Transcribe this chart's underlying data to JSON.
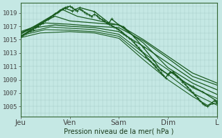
{
  "title": "Pression niveau de la mer( hPa )",
  "bg_color": "#c5e8e4",
  "grid_color": "#a8ccc8",
  "line_color": "#1a5c20",
  "yticks": [
    1005,
    1007,
    1009,
    1011,
    1013,
    1015,
    1017,
    1019
  ],
  "xtick_labels": [
    "Jeu",
    "Ven",
    "Sam",
    "Dim",
    "L"
  ],
  "xtick_pos": [
    0,
    1,
    2,
    3,
    4
  ],
  "ylim": [
    1003.5,
    1020.5
  ],
  "xlim": [
    0,
    4
  ],
  "series": [
    {
      "pts": [
        [
          0,
          1015.5
        ],
        [
          0.9,
          1019.7
        ],
        [
          1.05,
          1019.3
        ],
        [
          1.2,
          1019.8
        ],
        [
          1.5,
          1019.2
        ],
        [
          1.8,
          1017.5
        ],
        [
          1.85,
          1018.1
        ],
        [
          2.0,
          1017.2
        ],
        [
          2.1,
          1016.9
        ],
        [
          2.3,
          1015.5
        ],
        [
          2.5,
          1013.8
        ],
        [
          2.7,
          1012.0
        ],
        [
          2.85,
          1010.5
        ],
        [
          3.0,
          1009.8
        ],
        [
          3.1,
          1010.2
        ],
        [
          3.2,
          1009.5
        ],
        [
          3.3,
          1008.8
        ],
        [
          3.5,
          1008.0
        ],
        [
          3.7,
          1007.2
        ],
        [
          4.0,
          1005.8
        ]
      ],
      "lw": 1.0,
      "marker": true
    },
    {
      "pts": [
        [
          0,
          1015.8
        ],
        [
          0.85,
          1019.5
        ],
        [
          1.0,
          1019.0
        ],
        [
          1.15,
          1018.5
        ],
        [
          2.0,
          1017.2
        ],
        [
          2.5,
          1014.5
        ],
        [
          3.0,
          1010.8
        ],
        [
          3.5,
          1008.5
        ],
        [
          4.0,
          1006.8
        ]
      ],
      "lw": 0.9,
      "marker": false
    },
    {
      "pts": [
        [
          0,
          1016.0
        ],
        [
          0.7,
          1018.5
        ],
        [
          1.0,
          1017.8
        ],
        [
          1.5,
          1017.5
        ],
        [
          2.0,
          1017.2
        ],
        [
          2.5,
          1015.0
        ],
        [
          3.0,
          1012.5
        ],
        [
          3.5,
          1010.0
        ],
        [
          4.0,
          1008.5
        ]
      ],
      "lw": 0.9,
      "marker": false
    },
    {
      "pts": [
        [
          0,
          1016.2
        ],
        [
          0.5,
          1017.5
        ],
        [
          1.0,
          1017.3
        ],
        [
          1.5,
          1017.0
        ],
        [
          2.0,
          1016.8
        ],
        [
          2.5,
          1014.8
        ],
        [
          3.0,
          1012.2
        ],
        [
          3.5,
          1009.5
        ],
        [
          4.0,
          1008.2
        ]
      ],
      "lw": 0.9,
      "marker": false
    },
    {
      "pts": [
        [
          0,
          1016.0
        ],
        [
          0.3,
          1016.8
        ],
        [
          0.7,
          1017.2
        ],
        [
          1.0,
          1017.0
        ],
        [
          1.5,
          1016.8
        ],
        [
          2.0,
          1016.2
        ],
        [
          2.5,
          1014.0
        ],
        [
          3.0,
          1011.5
        ],
        [
          3.5,
          1009.0
        ],
        [
          4.0,
          1007.5
        ]
      ],
      "lw": 0.9,
      "marker": false
    },
    {
      "pts": [
        [
          0,
          1015.6
        ],
        [
          0.2,
          1016.2
        ],
        [
          0.6,
          1016.9
        ],
        [
          1.0,
          1016.7
        ],
        [
          1.5,
          1016.5
        ],
        [
          2.0,
          1015.8
        ],
        [
          2.5,
          1013.0
        ],
        [
          3.0,
          1010.5
        ],
        [
          3.5,
          1007.8
        ],
        [
          4.0,
          1006.2
        ]
      ],
      "lw": 0.8,
      "marker": false
    },
    {
      "pts": [
        [
          0,
          1015.4
        ],
        [
          0.1,
          1015.8
        ],
        [
          0.5,
          1016.5
        ],
        [
          1.0,
          1016.4
        ],
        [
          1.5,
          1016.2
        ],
        [
          2.0,
          1015.5
        ],
        [
          2.5,
          1012.5
        ],
        [
          3.0,
          1009.8
        ],
        [
          3.5,
          1007.0
        ],
        [
          4.0,
          1005.2
        ]
      ],
      "lw": 0.8,
      "marker": false
    },
    {
      "pts": [
        [
          0,
          1015.3
        ],
        [
          0.4,
          1016.0
        ],
        [
          1.0,
          1016.2
        ],
        [
          1.5,
          1016.0
        ],
        [
          2.0,
          1015.2
        ],
        [
          2.5,
          1012.0
        ],
        [
          3.0,
          1009.0
        ],
        [
          3.5,
          1006.5
        ],
        [
          3.8,
          1005.2
        ],
        [
          4.0,
          1005.5
        ]
      ],
      "lw": 0.8,
      "marker": false
    }
  ],
  "detail_line": {
    "segments": [
      [
        0,
        1015.5
      ],
      [
        0.05,
        1015.7
      ],
      [
        0.1,
        1015.9
      ],
      [
        0.15,
        1016.2
      ],
      [
        0.2,
        1016.3
      ],
      [
        0.25,
        1016.5
      ],
      [
        0.3,
        1016.8
      ],
      [
        0.35,
        1017.0
      ],
      [
        0.4,
        1017.3
      ],
      [
        0.45,
        1017.5
      ],
      [
        0.5,
        1017.8
      ],
      [
        0.55,
        1018.0
      ],
      [
        0.6,
        1018.3
      ],
      [
        0.65,
        1018.6
      ],
      [
        0.7,
        1018.9
      ],
      [
        0.75,
        1019.1
      ],
      [
        0.8,
        1019.4
      ],
      [
        0.85,
        1019.6
      ],
      [
        0.9,
        1019.8
      ],
      [
        0.95,
        1019.9
      ],
      [
        1.0,
        1020.0
      ],
      [
        1.05,
        1019.8
      ],
      [
        1.1,
        1019.5
      ],
      [
        1.15,
        1019.3
      ],
      [
        1.2,
        1019.6
      ],
      [
        1.25,
        1019.4
      ],
      [
        1.3,
        1019.1
      ],
      [
        1.35,
        1018.9
      ],
      [
        1.4,
        1018.7
      ],
      [
        1.45,
        1018.5
      ],
      [
        1.5,
        1018.8
      ],
      [
        1.55,
        1018.6
      ],
      [
        1.6,
        1018.2
      ],
      [
        1.65,
        1018.0
      ],
      [
        1.7,
        1017.8
      ],
      [
        1.75,
        1017.5
      ],
      [
        1.8,
        1017.3
      ],
      [
        1.85,
        1017.1
      ],
      [
        1.9,
        1016.9
      ],
      [
        1.95,
        1016.7
      ],
      [
        2.0,
        1016.5
      ],
      [
        2.05,
        1016.2
      ],
      [
        2.1,
        1015.9
      ],
      [
        2.15,
        1015.6
      ],
      [
        2.2,
        1015.3
      ],
      [
        2.25,
        1015.0
      ],
      [
        2.3,
        1014.6
      ],
      [
        2.35,
        1014.2
      ],
      [
        2.4,
        1013.8
      ],
      [
        2.45,
        1013.4
      ],
      [
        2.5,
        1013.0
      ],
      [
        2.55,
        1012.5
      ],
      [
        2.6,
        1012.1
      ],
      [
        2.65,
        1011.7
      ],
      [
        2.7,
        1011.3
      ],
      [
        2.75,
        1010.9
      ],
      [
        2.8,
        1010.5
      ],
      [
        2.85,
        1010.1
      ],
      [
        2.9,
        1009.7
      ],
      [
        2.95,
        1009.3
      ],
      [
        3.0,
        1009.8
      ],
      [
        3.05,
        1010.2
      ],
      [
        3.1,
        1010.0
      ],
      [
        3.15,
        1009.7
      ],
      [
        3.2,
        1009.4
      ],
      [
        3.25,
        1009.1
      ],
      [
        3.3,
        1008.7
      ],
      [
        3.35,
        1008.3
      ],
      [
        3.4,
        1007.9
      ],
      [
        3.45,
        1007.5
      ],
      [
        3.5,
        1007.1
      ],
      [
        3.55,
        1006.7
      ],
      [
        3.6,
        1006.3
      ],
      [
        3.65,
        1005.9
      ],
      [
        3.7,
        1005.5
      ],
      [
        3.75,
        1005.2
      ],
      [
        3.8,
        1005.0
      ],
      [
        3.85,
        1005.3
      ],
      [
        3.9,
        1005.6
      ],
      [
        3.95,
        1005.9
      ],
      [
        4.0,
        1005.5
      ]
    ]
  }
}
